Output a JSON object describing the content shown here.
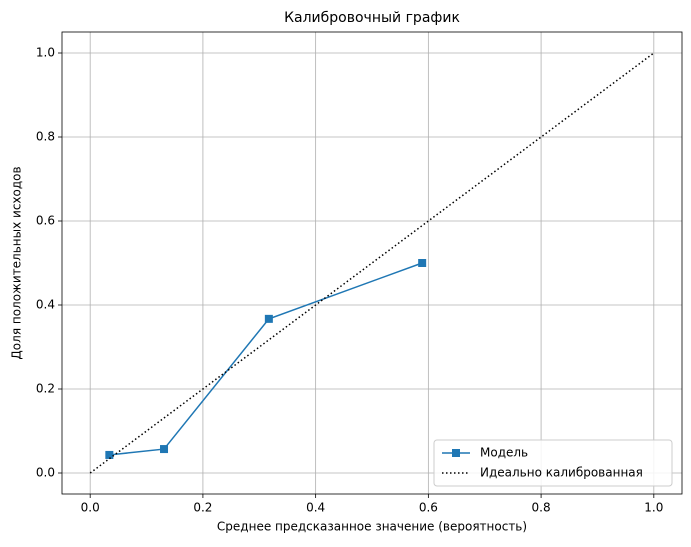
{
  "chart_data": {
    "type": "line",
    "title": "Калибровочный график",
    "x_label": "Среднее предсказанное значение (вероятность)",
    "y_label": "Доля положительных исходов",
    "series": [
      {
        "name": "Модель",
        "color": "#1f77b4",
        "marker": "square",
        "linestyle": "solid",
        "x": [
          0.034,
          0.131,
          0.317,
          0.589
        ],
        "values": [
          0.043,
          0.057,
          0.367,
          0.5
        ]
      },
      {
        "name": "Идеально калиброванная",
        "color": "#000000",
        "marker": "none",
        "linestyle": "dotted",
        "x": [
          0,
          1
        ],
        "values": [
          0,
          1
        ]
      }
    ],
    "xlim": [
      -0.05,
      1.05
    ],
    "ylim": [
      -0.05,
      1.05
    ],
    "xticks": [
      {
        "value": 0,
        "label": "0.0"
      },
      0.2,
      0.4,
      0.6,
      0.8,
      {
        "value": 1,
        "label": "1.0"
      }
    ],
    "yticks": [
      {
        "value": 0,
        "label": "0.0"
      },
      0.2,
      0.4,
      0.6,
      0.8,
      {
        "value": 1,
        "label": "1.0"
      }
    ],
    "grid": true,
    "legend": "lower right"
  }
}
